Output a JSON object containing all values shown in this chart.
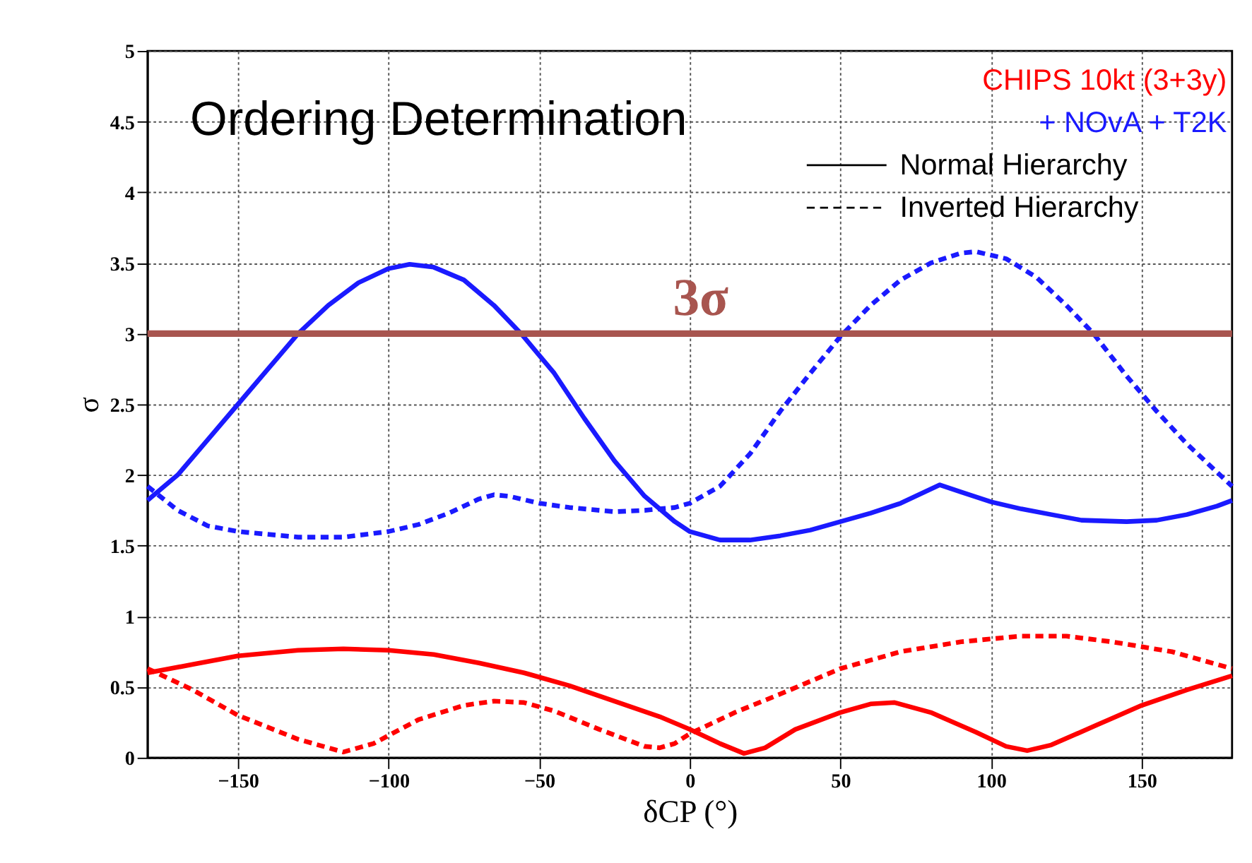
{
  "chart_data": {
    "type": "line",
    "title": "Ordering Determination",
    "xlabel": "δCP (°)",
    "ylabel": "σ",
    "xlim": [
      -180,
      180
    ],
    "xticks": [
      -150,
      -100,
      -50,
      0,
      50,
      100,
      150
    ],
    "ylim": [
      0,
      5
    ],
    "yticks": [
      0,
      0.5,
      1,
      1.5,
      2,
      2.5,
      3,
      3.5,
      4,
      4.5,
      5
    ],
    "grid": true,
    "legend": "top right",
    "marker": "none",
    "annotations": [
      "CHIPS 10kt (3+3y)",
      "+ NOvA + T2K",
      "Normal Hierarchy",
      "Inverted Hierarchy"
    ],
    "ref_lines": [
      {
        "axis": "y",
        "value": 3,
        "label": "3σ",
        "color": "#a8554f"
      }
    ],
    "series": [
      {
        "color": "#1a1aff",
        "line_style": "solid",
        "x": [
          -180,
          -170,
          -160,
          -150,
          -140,
          -130,
          -120,
          -110,
          -100,
          -93,
          -85,
          -75,
          -65,
          -56,
          -45,
          -35,
          -25,
          -15,
          -5,
          0,
          10,
          20,
          30,
          40,
          50,
          60,
          70,
          83,
          90,
          100,
          110,
          120,
          130,
          145,
          155,
          165,
          175,
          180
        ],
        "values": [
          1.82,
          2.0,
          2.25,
          2.5,
          2.75,
          3.0,
          3.2,
          3.36,
          3.46,
          3.49,
          3.47,
          3.38,
          3.2,
          3.0,
          2.72,
          2.4,
          2.1,
          1.85,
          1.67,
          1.6,
          1.54,
          1.54,
          1.57,
          1.61,
          1.67,
          1.73,
          1.8,
          1.93,
          1.88,
          1.81,
          1.76,
          1.72,
          1.68,
          1.67,
          1.68,
          1.72,
          1.78,
          1.82
        ]
      },
      {
        "color": "#1a1aff",
        "line_style": "dashed",
        "x": [
          -180,
          -170,
          -160,
          -150,
          -130,
          -115,
          -100,
          -90,
          -80,
          -70,
          -65,
          -60,
          -50,
          -40,
          -25,
          -15,
          -5,
          0,
          10,
          20,
          30,
          40,
          50,
          60,
          70,
          80,
          90,
          95,
          105,
          115,
          125,
          134,
          145,
          155,
          165,
          180
        ],
        "values": [
          1.92,
          1.75,
          1.64,
          1.6,
          1.56,
          1.56,
          1.6,
          1.65,
          1.73,
          1.83,
          1.86,
          1.85,
          1.8,
          1.77,
          1.74,
          1.75,
          1.77,
          1.8,
          1.92,
          2.15,
          2.45,
          2.72,
          2.98,
          3.2,
          3.38,
          3.5,
          3.57,
          3.58,
          3.53,
          3.4,
          3.2,
          3.0,
          2.7,
          2.45,
          2.22,
          1.92
        ]
      },
      {
        "color": "#ff0000",
        "line_style": "solid",
        "x": [
          -180,
          -165,
          -150,
          -130,
          -115,
          -100,
          -85,
          -70,
          -55,
          -40,
          -25,
          -10,
          0,
          10,
          18,
          25,
          35,
          50,
          60,
          68,
          80,
          95,
          105,
          112,
          120,
          135,
          150,
          165,
          180
        ],
        "values": [
          0.6,
          0.66,
          0.72,
          0.76,
          0.77,
          0.76,
          0.73,
          0.67,
          0.6,
          0.51,
          0.4,
          0.29,
          0.2,
          0.1,
          0.03,
          0.07,
          0.2,
          0.32,
          0.38,
          0.39,
          0.32,
          0.18,
          0.08,
          0.05,
          0.09,
          0.23,
          0.37,
          0.48,
          0.58
        ]
      },
      {
        "color": "#ff0000",
        "line_style": "dashed",
        "x": [
          -180,
          -165,
          -150,
          -130,
          -115,
          -105,
          -90,
          -75,
          -65,
          -55,
          -45,
          -30,
          -15,
          -10,
          -5,
          0,
          15,
          30,
          50,
          70,
          90,
          110,
          125,
          140,
          160,
          180
        ],
        "values": [
          0.63,
          0.48,
          0.3,
          0.13,
          0.04,
          0.1,
          0.27,
          0.37,
          0.4,
          0.39,
          0.33,
          0.2,
          0.08,
          0.07,
          0.1,
          0.17,
          0.32,
          0.45,
          0.63,
          0.75,
          0.82,
          0.86,
          0.86,
          0.82,
          0.75,
          0.63
        ]
      }
    ]
  }
}
